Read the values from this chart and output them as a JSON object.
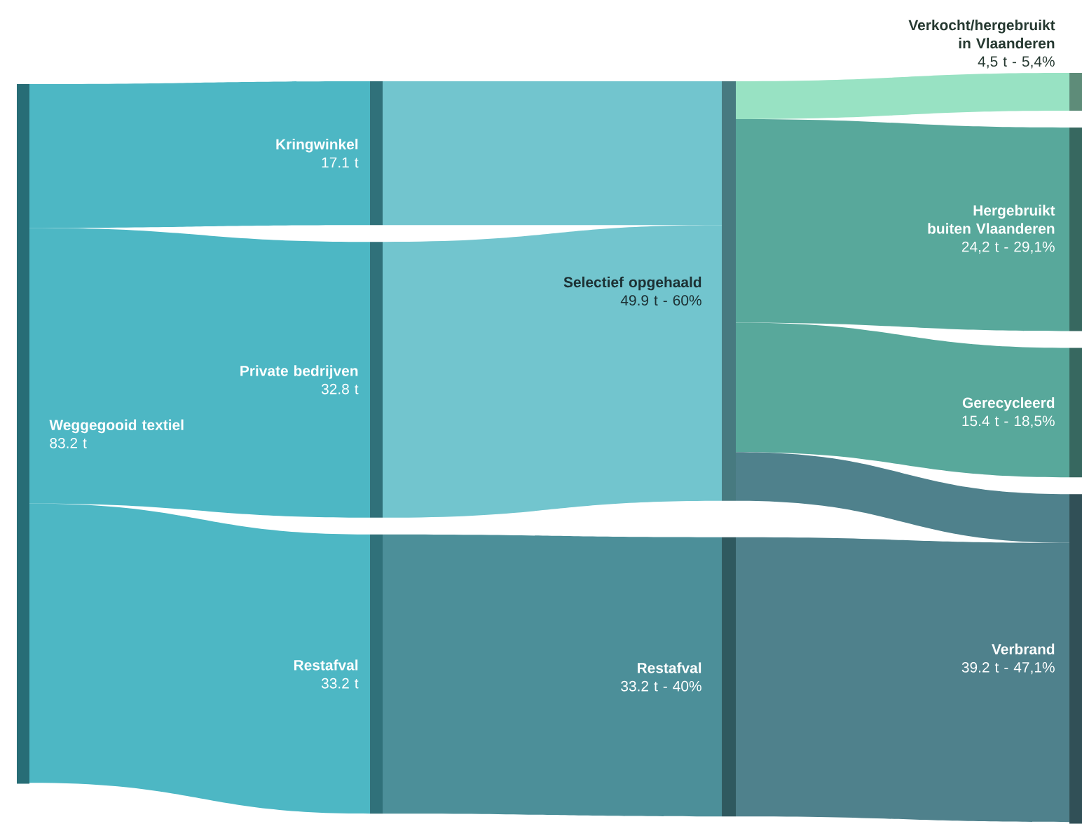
{
  "chart_data": {
    "type": "other",
    "categories": [
      "Weggegooid textiel",
      "Kringwinkel",
      "Private bedrijven",
      "Restafval",
      "Selectief opgehaald",
      "Restafval",
      "Verkocht/hergebruikt in Vlaanderen",
      "Hergebruikt buiten Vlaanderen",
      "Gerecycleerd",
      "Verbrand"
    ],
    "values": [
      83.2,
      17.1,
      32.8,
      33.2,
      49.9,
      33.2,
      4.5,
      24.2,
      15.4,
      39.2
    ],
    "value_labels": [
      "83.2 t",
      "17.1 t",
      "32.8 t",
      "33.2 t",
      "49.9 t  -  60%",
      "33.2 t  -  40%",
      "4,5 t  -  5,4%",
      "24,2 t  -  29,1%",
      "15.4 t  -  18,5%",
      "39.2 t  -  47,1%"
    ],
    "colors": [
      "#3fb0bf",
      "#4db7c4",
      "#4db7c4",
      "#4db7c4",
      "#72c5ce",
      "#4c8f99",
      "#98e2c3",
      "#58a89b",
      "#58a89b",
      "#4f818c"
    ]
  }
}
